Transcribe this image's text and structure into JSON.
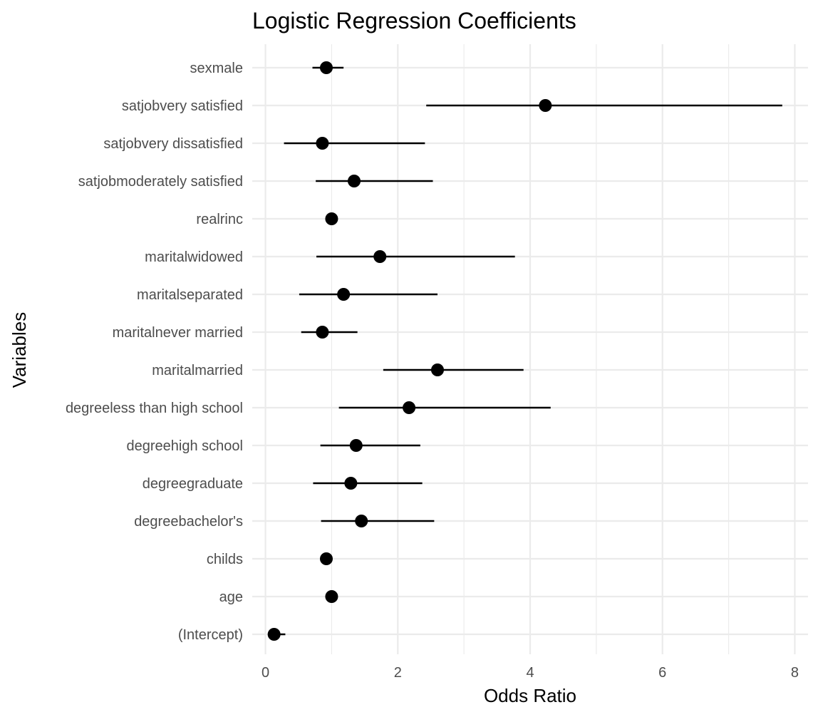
{
  "chart_data": {
    "type": "scatter",
    "title": "Logistic Regression Coefficients",
    "xlabel": "Odds Ratio",
    "ylabel": "Variables",
    "xlim": [
      -0.2,
      8.2
    ],
    "xticks": [
      0,
      2,
      4,
      6,
      8
    ],
    "grid": true,
    "legend": "none",
    "colors": {
      "point": "#000000",
      "line": "#000000",
      "grid": "#ebebeb"
    },
    "points": [
      {
        "label": "sexmale",
        "estimate": 0.92,
        "low": 0.71,
        "high": 1.18
      },
      {
        "label": "satjobvery satisfied",
        "estimate": 4.23,
        "low": 2.43,
        "high": 7.81
      },
      {
        "label": "satjobvery dissatisfied",
        "estimate": 0.86,
        "low": 0.28,
        "high": 2.41
      },
      {
        "label": "satjobmoderately satisfied",
        "estimate": 1.34,
        "low": 0.76,
        "high": 2.53
      },
      {
        "label": "realrinc",
        "estimate": 1.0,
        "low": 1.0,
        "high": 1.0
      },
      {
        "label": "maritalwidowed",
        "estimate": 1.73,
        "low": 0.77,
        "high": 3.77
      },
      {
        "label": "maritalseparated",
        "estimate": 1.18,
        "low": 0.51,
        "high": 2.6
      },
      {
        "label": "maritalnever married",
        "estimate": 0.86,
        "low": 0.54,
        "high": 1.39
      },
      {
        "label": "maritalmarried",
        "estimate": 2.6,
        "low": 1.78,
        "high": 3.9
      },
      {
        "label": "degreeless than high school",
        "estimate": 2.17,
        "low": 1.11,
        "high": 4.31
      },
      {
        "label": "degreehigh school",
        "estimate": 1.37,
        "low": 0.83,
        "high": 2.34
      },
      {
        "label": "degreegraduate",
        "estimate": 1.29,
        "low": 0.72,
        "high": 2.37
      },
      {
        "label": "degreebachelor's",
        "estimate": 1.45,
        "low": 0.84,
        "high": 2.55
      },
      {
        "label": "childs",
        "estimate": 0.92,
        "low": 0.89,
        "high": 0.95
      },
      {
        "label": "age",
        "estimate": 1.0,
        "low": 0.99,
        "high": 1.01
      },
      {
        "label": "(Intercept)",
        "estimate": 0.13,
        "low": 0.05,
        "high": 0.3
      }
    ]
  }
}
